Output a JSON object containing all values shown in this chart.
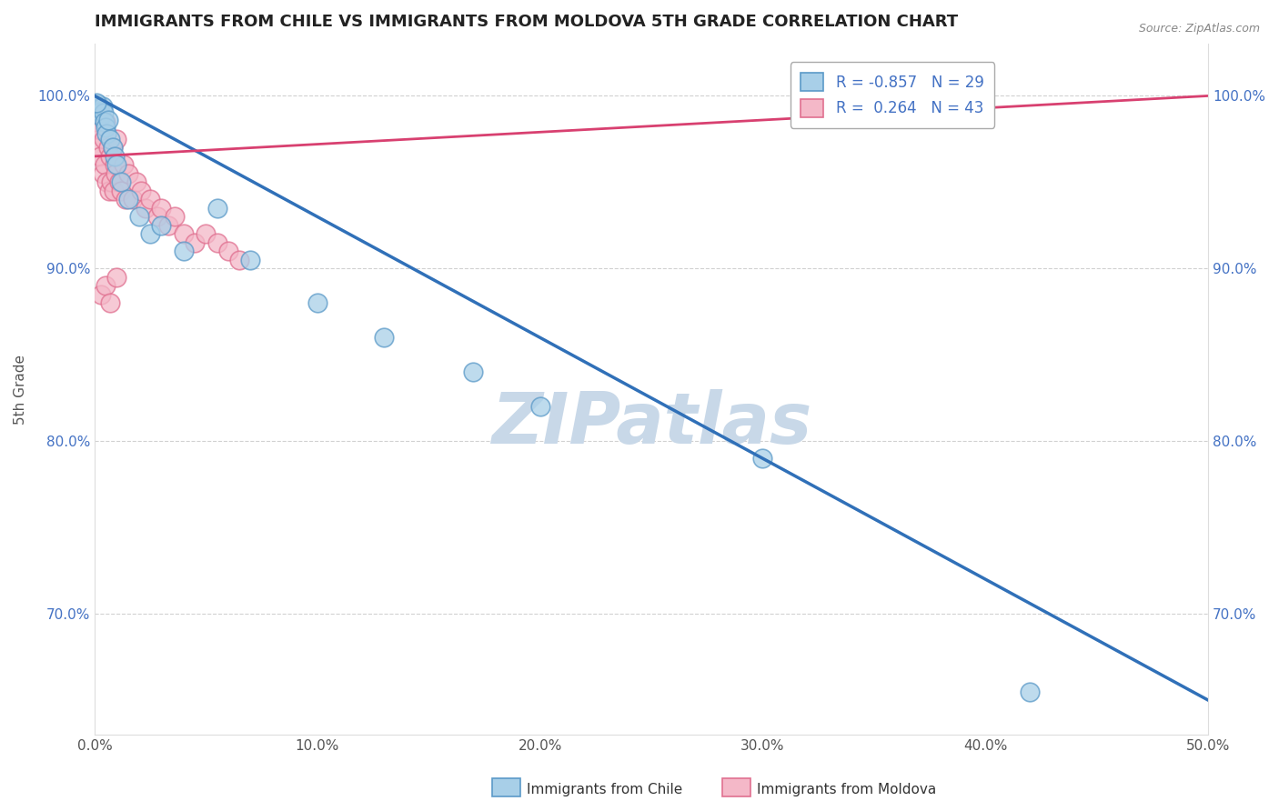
{
  "title": "IMMIGRANTS FROM CHILE VS IMMIGRANTS FROM MOLDOVA 5TH GRADE CORRELATION CHART",
  "source": "Source: ZipAtlas.com",
  "xlabel_bottom": [
    "Immigrants from Chile",
    "Immigrants from Moldova"
  ],
  "ylabel": "5th Grade",
  "xlim": [
    0.0,
    50.0
  ],
  "ylim": [
    63.0,
    103.0
  ],
  "legend_R_chile": "-0.857",
  "legend_N_chile": "29",
  "legend_R_moldova": "0.264",
  "legend_N_moldova": "43",
  "chile_color": "#a8cfe8",
  "moldova_color": "#f4b8c8",
  "chile_edge_color": "#5b9ac8",
  "moldova_edge_color": "#e07090",
  "chile_line_color": "#3070b8",
  "moldova_line_color": "#d84070",
  "watermark": "ZIPatlas",
  "title_fontsize": 13,
  "watermark_color": "#c8d8e8",
  "tick_color": "#4472c4",
  "grid_color": "#cccccc",
  "chile_scatter_x": [
    0.15,
    0.2,
    0.25,
    0.3,
    0.35,
    0.4,
    0.45,
    0.5,
    0.55,
    0.6,
    0.7,
    0.8,
    0.9,
    1.0,
    1.2,
    1.5,
    2.0,
    2.5,
    3.0,
    4.0,
    5.5,
    7.0,
    10.0,
    13.0,
    17.0,
    20.0,
    30.0,
    42.0,
    0.1
  ],
  "chile_scatter_y": [
    99.5,
    99.3,
    99.1,
    98.8,
    99.4,
    99.0,
    98.5,
    98.2,
    97.8,
    98.6,
    97.5,
    97.0,
    96.5,
    96.0,
    95.0,
    94.0,
    93.0,
    92.0,
    92.5,
    91.0,
    93.5,
    90.5,
    88.0,
    86.0,
    84.0,
    82.0,
    79.0,
    65.5,
    99.6
  ],
  "moldova_scatter_x": [
    0.1,
    0.15,
    0.2,
    0.25,
    0.3,
    0.35,
    0.4,
    0.45,
    0.5,
    0.55,
    0.6,
    0.65,
    0.7,
    0.75,
    0.8,
    0.85,
    0.9,
    0.95,
    1.0,
    1.1,
    1.2,
    1.3,
    1.4,
    1.5,
    1.7,
    1.9,
    2.1,
    2.3,
    2.5,
    2.8,
    3.0,
    3.3,
    3.6,
    4.0,
    4.5,
    5.0,
    5.5,
    6.0,
    6.5,
    0.3,
    0.5,
    0.7,
    1.0
  ],
  "moldova_scatter_y": [
    98.5,
    97.0,
    99.2,
    96.5,
    98.0,
    95.5,
    97.5,
    96.0,
    98.5,
    95.0,
    97.0,
    94.5,
    96.5,
    95.0,
    97.0,
    94.5,
    96.0,
    95.5,
    97.5,
    95.0,
    94.5,
    96.0,
    94.0,
    95.5,
    94.0,
    95.0,
    94.5,
    93.5,
    94.0,
    93.0,
    93.5,
    92.5,
    93.0,
    92.0,
    91.5,
    92.0,
    91.5,
    91.0,
    90.5,
    88.5,
    89.0,
    88.0,
    89.5
  ],
  "chile_trendline_x": [
    0.0,
    50.0
  ],
  "chile_trendline_y": [
    100.0,
    65.0
  ],
  "moldova_trendline_x": [
    0.0,
    50.0
  ],
  "moldova_trendline_y": [
    96.5,
    100.0
  ]
}
